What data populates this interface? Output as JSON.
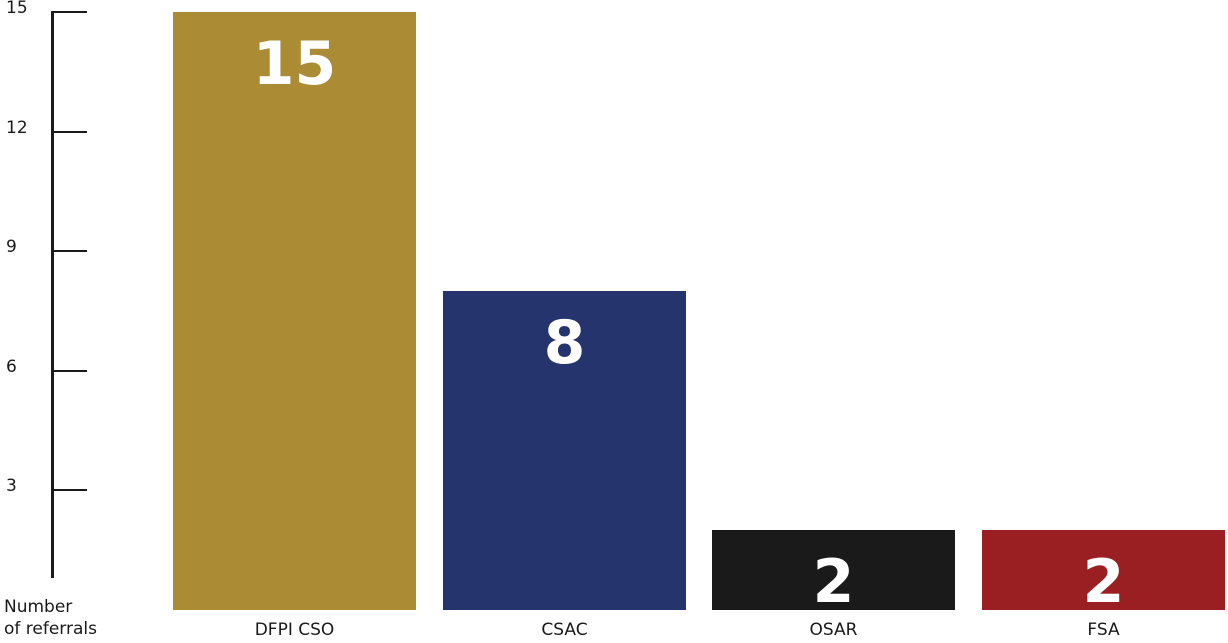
{
  "chart_data": {
    "type": "bar",
    "categories": [
      "DFPI CSO",
      "CSAC",
      "OSAR",
      "FSA"
    ],
    "values": [
      15,
      8,
      2,
      2
    ],
    "colors": [
      "#ab8b34",
      "#25346c",
      "#1a1a1a",
      "#991f22"
    ],
    "ylabel_line1": "Number",
    "ylabel_line2": "of referrals",
    "yticks": [
      3,
      6,
      9,
      12,
      15
    ],
    "ylim": [
      0,
      15
    ],
    "grid": false
  }
}
